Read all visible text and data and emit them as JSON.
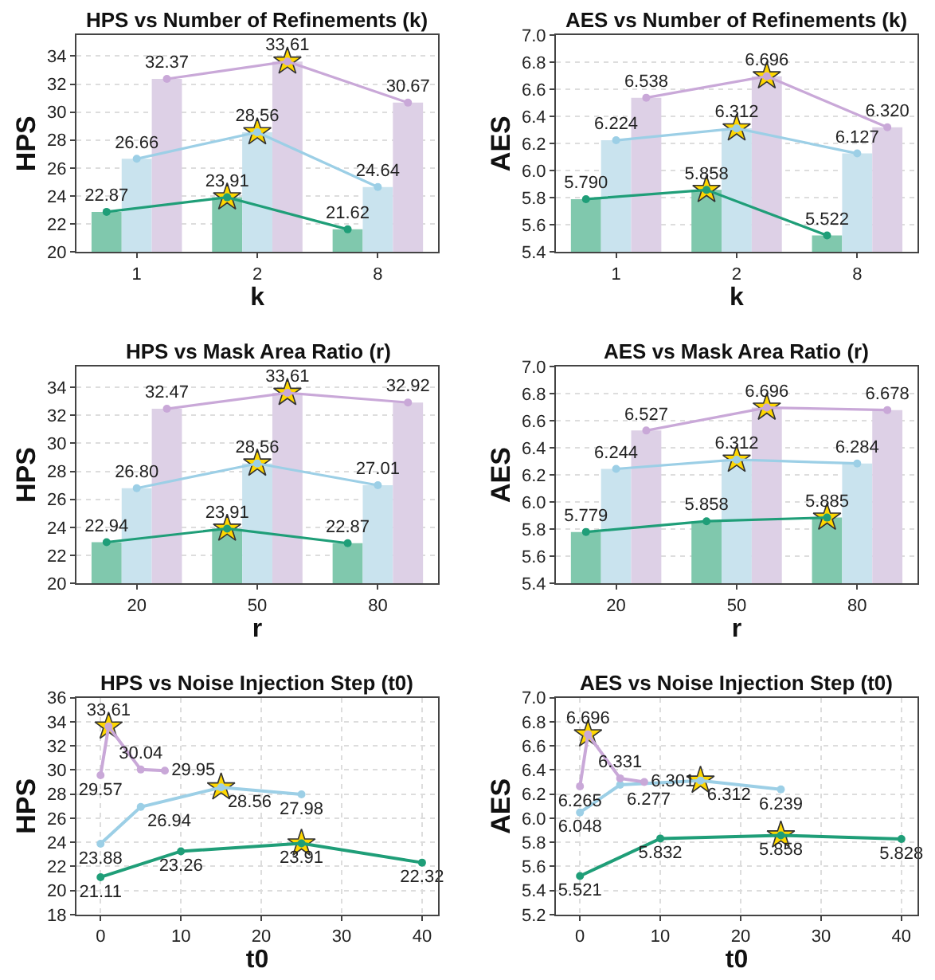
{
  "chart_data": [
    {
      "type": "bar",
      "title": "HPS vs Number of Refinements (k)",
      "xlabel": "k",
      "ylabel": "HPS",
      "categories": [
        "1",
        "2",
        "8"
      ],
      "ylim": [
        20,
        35.5
      ],
      "yticks": [
        20,
        22,
        24,
        26,
        28,
        30,
        32,
        34
      ],
      "grid": "y",
      "series": [
        {
          "color": "#80c8ad",
          "values": [
            22.87,
            23.91,
            21.62
          ]
        },
        {
          "color": "#c9e3ee",
          "values": [
            26.66,
            28.56,
            24.64
          ]
        },
        {
          "color": "#ddd0e6",
          "values": [
            32.37,
            33.61,
            30.67
          ]
        },
        {
          "type": "line",
          "marker": "circle",
          "color": "#1f9e78",
          "values": [
            22.87,
            23.91,
            21.62
          ],
          "value_labels": [
            "22.87",
            "23.91",
            "21.62"
          ]
        },
        {
          "type": "line",
          "marker": "circle",
          "color": "#9ccfe6",
          "values": [
            26.66,
            28.56,
            24.64
          ],
          "value_labels": [
            "26.66",
            "28.56",
            "24.64"
          ]
        },
        {
          "type": "line",
          "marker": "circle",
          "color": "#c9a8d8",
          "values": [
            32.37,
            33.61,
            30.67
          ],
          "value_labels": [
            "32.37",
            "33.61",
            "30.67"
          ]
        },
        {
          "type": "scatter",
          "marker": "star",
          "color": "#ffd700",
          "values": [
            null,
            23.91,
            null
          ]
        },
        {
          "type": "scatter",
          "marker": "star",
          "color": "#ffd700",
          "values": [
            null,
            28.56,
            null
          ]
        },
        {
          "type": "scatter",
          "marker": "star",
          "color": "#ffd700",
          "values": [
            null,
            33.61,
            null
          ]
        }
      ]
    },
    {
      "type": "bar",
      "title": "AES vs Number of Refinements (k)",
      "xlabel": "k",
      "ylabel": "AES",
      "categories": [
        "1",
        "2",
        "8"
      ],
      "ylim": [
        5.4,
        7.0
      ],
      "yticks": [
        {
          "value": 5.4,
          "label": "5.4"
        },
        {
          "value": 5.6,
          "label": "5.6"
        },
        {
          "value": 5.8,
          "label": "5.8"
        },
        {
          "value": 6.0,
          "label": "6.0"
        },
        {
          "value": 6.2,
          "label": "6.2"
        },
        {
          "value": 6.4,
          "label": "6.4"
        },
        {
          "value": 6.6,
          "label": "6.6"
        },
        {
          "value": 6.8,
          "label": "6.8"
        },
        {
          "value": 7.0,
          "label": "7.0"
        }
      ],
      "grid": "y",
      "series": [
        {
          "color": "#80c8ad",
          "values": [
            5.79,
            5.858,
            5.522
          ]
        },
        {
          "color": "#c9e3ee",
          "values": [
            6.224,
            6.312,
            6.127
          ]
        },
        {
          "color": "#ddd0e6",
          "values": [
            6.538,
            6.696,
            6.32
          ]
        },
        {
          "type": "line",
          "marker": "circle",
          "color": "#1f9e78",
          "values": [
            5.79,
            5.858,
            5.522
          ],
          "value_labels": [
            "5.790",
            "5.858",
            "5.522"
          ]
        },
        {
          "type": "line",
          "marker": "circle",
          "color": "#9ccfe6",
          "values": [
            6.224,
            6.312,
            6.127
          ],
          "value_labels": [
            "6.224",
            "6.312",
            "6.127"
          ]
        },
        {
          "type": "line",
          "marker": "circle",
          "color": "#c9a8d8",
          "values": [
            6.538,
            6.696,
            6.32
          ],
          "value_labels": [
            "6.538",
            "6.696",
            "6.320"
          ]
        },
        {
          "type": "scatter",
          "marker": "star",
          "color": "#ffd700",
          "values": [
            null,
            5.858,
            null
          ]
        },
        {
          "type": "scatter",
          "marker": "star",
          "color": "#ffd700",
          "values": [
            null,
            6.312,
            null
          ]
        },
        {
          "type": "scatter",
          "marker": "star",
          "color": "#ffd700",
          "values": [
            null,
            6.696,
            null
          ]
        }
      ]
    },
    {
      "type": "bar",
      "title": "HPS vs Mask Area Ratio (r)",
      "xlabel": "r",
      "ylabel": "HPS",
      "categories": [
        "20",
        "50",
        "80"
      ],
      "ylim": [
        20,
        35.5
      ],
      "yticks": [
        20,
        22,
        24,
        26,
        28,
        30,
        32,
        34
      ],
      "grid": "y",
      "series": [
        {
          "color": "#80c8ad",
          "values": [
            22.94,
            23.91,
            22.87
          ]
        },
        {
          "color": "#c9e3ee",
          "values": [
            26.8,
            28.56,
            27.01
          ]
        },
        {
          "color": "#ddd0e6",
          "values": [
            32.47,
            33.61,
            32.92
          ]
        },
        {
          "type": "line",
          "marker": "circle",
          "color": "#1f9e78",
          "values": [
            22.94,
            23.91,
            22.87
          ],
          "value_labels": [
            "22.94",
            "23.91",
            "22.87"
          ]
        },
        {
          "type": "line",
          "marker": "circle",
          "color": "#9ccfe6",
          "values": [
            26.8,
            28.56,
            27.01
          ],
          "value_labels": [
            "26.80",
            "28.56",
            "27.01"
          ]
        },
        {
          "type": "line",
          "marker": "circle",
          "color": "#c9a8d8",
          "values": [
            32.47,
            33.61,
            32.92
          ],
          "value_labels": [
            "32.47",
            "33.61",
            "32.92"
          ]
        },
        {
          "type": "scatter",
          "marker": "star",
          "color": "#ffd700",
          "values": [
            null,
            23.91,
            null
          ]
        },
        {
          "type": "scatter",
          "marker": "star",
          "color": "#ffd700",
          "values": [
            null,
            28.56,
            null
          ]
        },
        {
          "type": "scatter",
          "marker": "star",
          "color": "#ffd700",
          "values": [
            null,
            33.61,
            null
          ]
        }
      ]
    },
    {
      "type": "bar",
      "title": "AES vs Mask Area Ratio (r)",
      "xlabel": "r",
      "ylabel": "AES",
      "categories": [
        "20",
        "50",
        "80"
      ],
      "ylim": [
        5.4,
        7.0
      ],
      "yticks": [
        {
          "value": 5.4,
          "label": "5.4"
        },
        {
          "value": 5.6,
          "label": "5.6"
        },
        {
          "value": 5.8,
          "label": "5.8"
        },
        {
          "value": 6.0,
          "label": "6.0"
        },
        {
          "value": 6.2,
          "label": "6.2"
        },
        {
          "value": 6.4,
          "label": "6.4"
        },
        {
          "value": 6.6,
          "label": "6.6"
        },
        {
          "value": 6.8,
          "label": "6.8"
        },
        {
          "value": 7.0,
          "label": "7.0"
        }
      ],
      "grid": "y",
      "series": [
        {
          "color": "#80c8ad",
          "values": [
            5.779,
            5.858,
            5.885
          ]
        },
        {
          "color": "#c9e3ee",
          "values": [
            6.244,
            6.312,
            6.284
          ]
        },
        {
          "color": "#ddd0e6",
          "values": [
            6.527,
            6.696,
            6.678
          ]
        },
        {
          "type": "line",
          "marker": "circle",
          "color": "#1f9e78",
          "values": [
            5.779,
            5.858,
            5.885
          ],
          "value_labels": [
            "5.779",
            "5.858",
            "5.885"
          ]
        },
        {
          "type": "line",
          "marker": "circle",
          "color": "#9ccfe6",
          "values": [
            6.244,
            6.312,
            6.284
          ],
          "value_labels": [
            "6.244",
            "6.312",
            "6.284"
          ]
        },
        {
          "type": "line",
          "marker": "circle",
          "color": "#c9a8d8",
          "values": [
            6.527,
            6.696,
            6.678
          ],
          "value_labels": [
            "6.527",
            "6.696",
            "6.678"
          ]
        },
        {
          "type": "scatter",
          "marker": "star",
          "color": "#ffd700",
          "values": [
            null,
            null,
            5.885
          ]
        },
        {
          "type": "scatter",
          "marker": "star",
          "color": "#ffd700",
          "values": [
            null,
            6.312,
            null
          ]
        },
        {
          "type": "scatter",
          "marker": "star",
          "color": "#ffd700",
          "values": [
            null,
            6.696,
            null
          ]
        }
      ]
    },
    {
      "type": "line",
      "title": "HPS vs Noise Injection Step (t0)",
      "xlabel": "t0",
      "ylabel": "HPS",
      "xlim": [
        -3,
        42
      ],
      "xticks": [
        0,
        10,
        20,
        30,
        40
      ],
      "ylim": [
        18,
        36
      ],
      "yticks": [
        18,
        20,
        22,
        24,
        26,
        28,
        30,
        32,
        34,
        36
      ],
      "grid": true,
      "marker": "circle",
      "series": [
        {
          "color": "#1f9e78",
          "x": [
            0,
            10,
            25,
            40
          ],
          "values": [
            21.11,
            23.26,
            23.91,
            22.32
          ],
          "value_labels": [
            "21.11",
            "23.26",
            "23.91",
            "22.32"
          ]
        },
        {
          "color": "#9ccfe6",
          "x": [
            0,
            5,
            15,
            25
          ],
          "values": [
            23.88,
            26.94,
            28.56,
            27.98
          ],
          "value_labels": [
            "23.88",
            "26.94",
            "28.56",
            "27.98"
          ]
        },
        {
          "color": "#c9a8d8",
          "x": [
            0,
            1,
            5,
            8
          ],
          "values": [
            29.57,
            33.61,
            30.04,
            29.95
          ],
          "value_labels": [
            "29.57",
            "33.61",
            "30.04",
            "29.95"
          ]
        },
        {
          "type": "scatter",
          "marker": "star",
          "color": "#ffd700",
          "x": [
            25,
            15,
            1
          ],
          "values": [
            23.91,
            28.56,
            33.61
          ]
        }
      ]
    },
    {
      "type": "line",
      "title": "AES vs Noise Injection Step (t0)",
      "xlabel": "t0",
      "ylabel": "AES",
      "xlim": [
        -3,
        42
      ],
      "xticks": [
        0,
        10,
        20,
        30,
        40
      ],
      "ylim": [
        5.2,
        7.0
      ],
      "yticks": [
        {
          "value": 5.2,
          "label": "5.2"
        },
        {
          "value": 5.4,
          "label": "5.4"
        },
        {
          "value": 5.6,
          "label": "5.6"
        },
        {
          "value": 5.8,
          "label": "5.8"
        },
        {
          "value": 6.0,
          "label": "6.0"
        },
        {
          "value": 6.2,
          "label": "6.2"
        },
        {
          "value": 6.4,
          "label": "6.4"
        },
        {
          "value": 6.6,
          "label": "6.6"
        },
        {
          "value": 6.8,
          "label": "6.8"
        },
        {
          "value": 7.0,
          "label": "7.0"
        }
      ],
      "grid": true,
      "marker": "circle",
      "series": [
        {
          "color": "#1f9e78",
          "x": [
            0,
            10,
            25,
            40
          ],
          "values": [
            5.521,
            5.832,
            5.858,
            5.828
          ],
          "value_labels": [
            "5.521",
            "5.832",
            "5.858",
            "5.828"
          ]
        },
        {
          "color": "#9ccfe6",
          "x": [
            0,
            5,
            15,
            25
          ],
          "values": [
            6.048,
            6.277,
            6.312,
            6.239
          ],
          "value_labels": [
            "6.048",
            "6.277",
            "6.312",
            "6.239"
          ]
        },
        {
          "color": "#c9a8d8",
          "x": [
            0,
            1,
            5,
            8
          ],
          "values": [
            6.265,
            6.696,
            6.331,
            6.301
          ],
          "value_labels": [
            "6.265",
            "6.696",
            "6.331",
            "6.301"
          ]
        },
        {
          "type": "scatter",
          "marker": "star",
          "color": "#ffd700",
          "x": [
            25,
            15,
            1
          ],
          "values": [
            5.858,
            6.312,
            6.696
          ]
        }
      ]
    }
  ]
}
